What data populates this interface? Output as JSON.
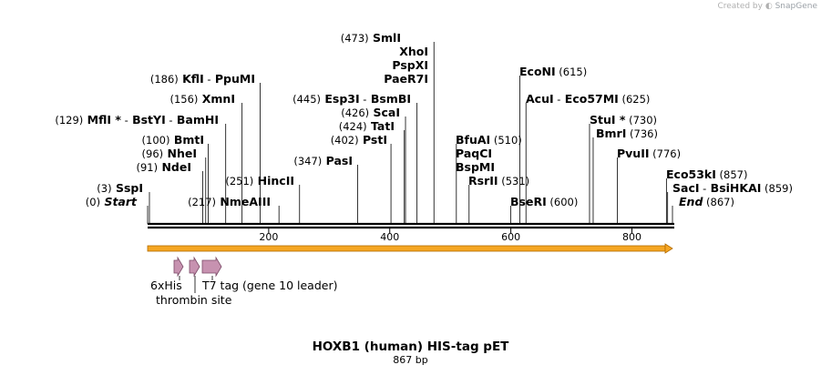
{
  "credit": {
    "created_by": "Created by",
    "brand": "SnapGene"
  },
  "map": {
    "title": "HOXB1 (human) HIS-tag pET",
    "length_label": "867 bp",
    "length": 867,
    "ticks": [
      "200",
      "400",
      "600",
      "800"
    ],
    "tick_values": [
      200,
      400,
      600,
      800
    ]
  },
  "sites": [
    {
      "row": "r_smli",
      "parts": [
        {
          "t": "(473)",
          "k": "pos"
        },
        {
          "t": "SmlI",
          "k": "enz"
        }
      ],
      "cut": 473
    },
    {
      "row": "r_xhoi",
      "parts": [
        {
          "t": "XhoI",
          "k": "enz"
        }
      ],
      "cut": 473
    },
    {
      "row": "r_pspxi",
      "parts": [
        {
          "t": "PspXI",
          "k": "enz"
        }
      ],
      "cut": 473
    },
    {
      "row": "r_paer7i",
      "parts": [
        {
          "t": "PaeR7I",
          "k": "enz"
        }
      ],
      "cut": 473
    },
    {
      "row": "r_econi",
      "parts": [
        {
          "t": "EcoNI",
          "k": "enz"
        },
        {
          "t": "(615)",
          "k": "pos"
        }
      ],
      "cut": 615
    },
    {
      "row": "r_kfli",
      "parts": [
        {
          "t": "(186)",
          "k": "pos"
        },
        {
          "t": "KflI",
          "k": "enz"
        },
        {
          "t": "-",
          "k": "pos"
        },
        {
          "t": "PpuMI",
          "k": "enz"
        }
      ],
      "cut": 186
    },
    {
      "row": "r_xmni",
      "parts": [
        {
          "t": "(156)",
          "k": "pos"
        },
        {
          "t": "XmnI",
          "k": "enz"
        }
      ],
      "cut": 156
    },
    {
      "row": "r_esp3i",
      "parts": [
        {
          "t": "(445)",
          "k": "pos"
        },
        {
          "t": "Esp3I",
          "k": "enz"
        },
        {
          "t": "-",
          "k": "pos"
        },
        {
          "t": "BsmBI",
          "k": "enz"
        }
      ],
      "cut": 445
    },
    {
      "row": "r_acui",
      "parts": [
        {
          "t": "AcuI",
          "k": "enz"
        },
        {
          "t": "-",
          "k": "pos"
        },
        {
          "t": "Eco57MI",
          "k": "enz"
        },
        {
          "t": "(625)",
          "k": "pos"
        }
      ],
      "cut": 625
    },
    {
      "row": "r_scai",
      "parts": [
        {
          "t": "(426)",
          "k": "pos"
        },
        {
          "t": "ScaI",
          "k": "enz"
        }
      ],
      "cut": 426
    },
    {
      "row": "r_mfli",
      "parts": [
        {
          "t": "(129)",
          "k": "pos"
        },
        {
          "t": "MflI *",
          "k": "enz"
        },
        {
          "t": "-",
          "k": "pos"
        },
        {
          "t": "BstYI",
          "k": "enz"
        },
        {
          "t": "-",
          "k": "pos"
        },
        {
          "t": "BamHI",
          "k": "enz"
        }
      ],
      "cut": 129
    },
    {
      "row": "r_stui",
      "parts": [
        {
          "t": "StuI *",
          "k": "enz"
        },
        {
          "t": "(730)",
          "k": "pos"
        }
      ],
      "cut": 730
    },
    {
      "row": "r_tati",
      "parts": [
        {
          "t": "(424)",
          "k": "pos"
        },
        {
          "t": "TatI",
          "k": "enz"
        }
      ],
      "cut": 424
    },
    {
      "row": "r_bmri",
      "parts": [
        {
          "t": "BmrI",
          "k": "enz"
        },
        {
          "t": "(736)",
          "k": "pos"
        }
      ],
      "cut": 736
    },
    {
      "row": "r_bmti",
      "parts": [
        {
          "t": "(100)",
          "k": "pos"
        },
        {
          "t": "BmtI",
          "k": "enz"
        }
      ],
      "cut": 100
    },
    {
      "row": "r_psti",
      "parts": [
        {
          "t": "(402)",
          "k": "pos"
        },
        {
          "t": "PstI",
          "k": "enz"
        }
      ],
      "cut": 402
    },
    {
      "row": "r_bfuai",
      "parts": [
        {
          "t": "BfuAI",
          "k": "enz"
        },
        {
          "t": "(510)",
          "k": "pos"
        }
      ],
      "cut": 510
    },
    {
      "row": "r_nhei",
      "parts": [
        {
          "t": "(96)",
          "k": "pos"
        },
        {
          "t": "NheI",
          "k": "enz"
        }
      ],
      "cut": 96
    },
    {
      "row": "r_paqci",
      "parts": [
        {
          "t": "PaqCI",
          "k": "enz"
        }
      ],
      "cut": 510
    },
    {
      "row": "r_pvuii",
      "parts": [
        {
          "t": "PvuII",
          "k": "enz"
        },
        {
          "t": "(776)",
          "k": "pos"
        }
      ],
      "cut": 776
    },
    {
      "row": "r_ndei",
      "parts": [
        {
          "t": "(91)",
          "k": "pos"
        },
        {
          "t": "NdeI",
          "k": "enz"
        }
      ],
      "cut": 91
    },
    {
      "row": "r_pasi",
      "parts": [
        {
          "t": "(347)",
          "k": "pos"
        },
        {
          "t": "PasI",
          "k": "enz"
        }
      ],
      "cut": 347
    },
    {
      "row": "r_bspmi",
      "parts": [
        {
          "t": "BspMI",
          "k": "enz"
        }
      ],
      "cut": 510
    },
    {
      "row": "r_eco53ki",
      "parts": [
        {
          "t": "Eco53kI",
          "k": "enz"
        },
        {
          "t": "(857)",
          "k": "pos"
        }
      ],
      "cut": 857
    },
    {
      "row": "r_hincii",
      "parts": [
        {
          "t": "(251)",
          "k": "pos"
        },
        {
          "t": "HincII",
          "k": "enz"
        }
      ],
      "cut": 251
    },
    {
      "row": "r_rsrii",
      "parts": [
        {
          "t": "RsrII",
          "k": "enz"
        },
        {
          "t": "(531)",
          "k": "pos"
        }
      ],
      "cut": 531
    },
    {
      "row": "r_sspi",
      "parts": [
        {
          "t": "(3)",
          "k": "pos"
        },
        {
          "t": "SspI",
          "k": "enz"
        }
      ],
      "cut": 3
    },
    {
      "row": "r_saci",
      "parts": [
        {
          "t": "SacI",
          "k": "enz"
        },
        {
          "t": "-",
          "k": "pos"
        },
        {
          "t": "BsiHKAI",
          "k": "enz"
        },
        {
          "t": "(859)",
          "k": "pos"
        }
      ],
      "cut": 859
    },
    {
      "row": "r_start",
      "parts": [
        {
          "t": "(0)",
          "k": "pos"
        },
        {
          "t": "Start",
          "k": "it"
        }
      ],
      "cut": 0
    },
    {
      "row": "r_nmeaiii",
      "parts": [
        {
          "t": "(217)",
          "k": "pos"
        },
        {
          "t": "NmeAIII",
          "k": "enz"
        }
      ],
      "cut": 217
    },
    {
      "row": "r_bseri",
      "parts": [
        {
          "t": "BseRI",
          "k": "enz"
        },
        {
          "t": "(600)",
          "k": "pos"
        }
      ],
      "cut": 600
    },
    {
      "row": "r_end",
      "parts": [
        {
          "t": "End",
          "k": "it"
        },
        {
          "t": "(867)",
          "k": "pos"
        }
      ],
      "cut": 867
    }
  ],
  "features": [
    {
      "name": "6xHis",
      "start": 43,
      "end": 60
    },
    {
      "name": "thrombin site",
      "start": 70,
      "end": 87
    },
    {
      "name": "T7 tag (gene 10 leader)",
      "start": 91,
      "end": 123
    }
  ],
  "colors": {
    "backbone": "#000000",
    "orf": "#f5a623",
    "orf_border": "#b36b00",
    "feature_fill": "#c792b0",
    "feature_border": "#7a4a66",
    "site_line": "#000000"
  }
}
